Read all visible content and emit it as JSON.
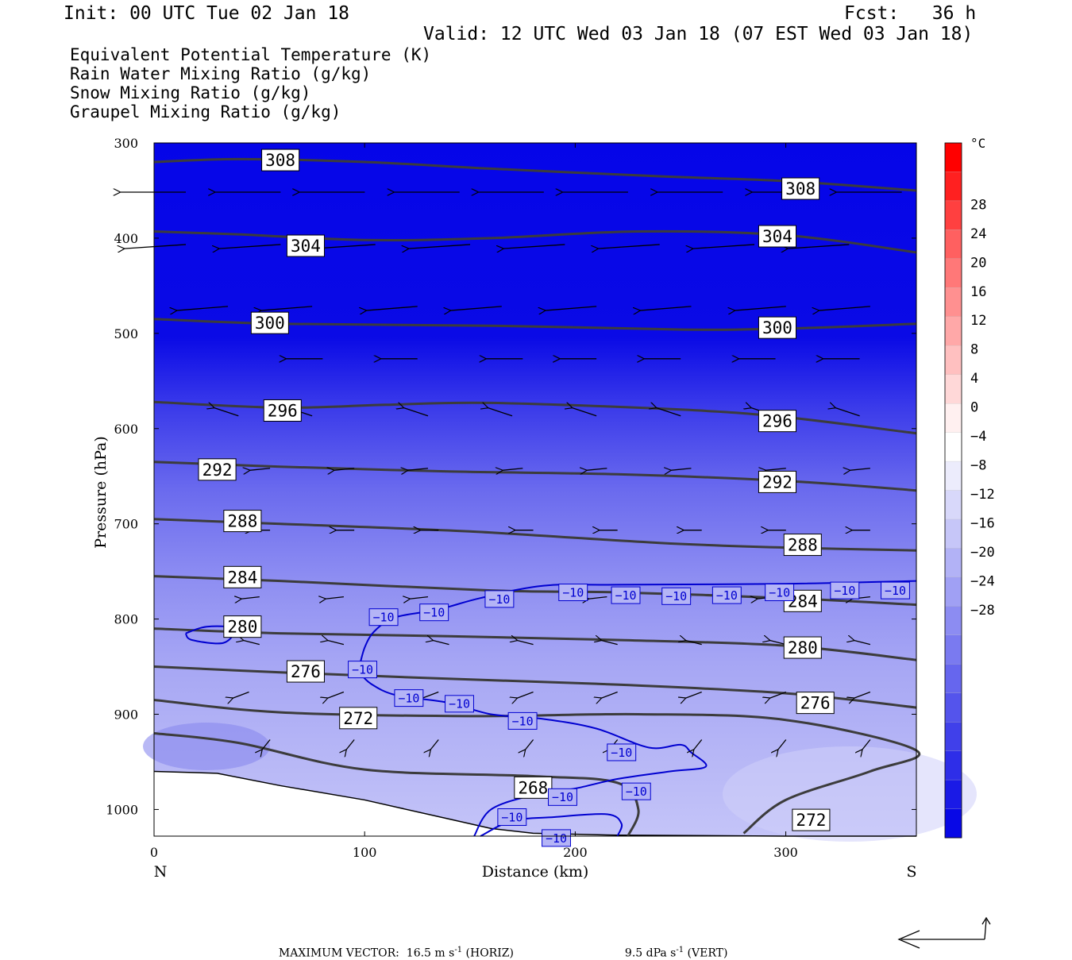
{
  "header": {
    "init": "Init: 00 UTC Tue 02 Jan 18",
    "fcst": "Fcst:   36 h",
    "valid": "Valid: 12 UTC Wed 03 Jan 18 (07 EST Wed 03 Jan 18)"
  },
  "fields": [
    {
      "label": "Equivalent Potential Temperature (K)",
      "color": "#555555"
    },
    {
      "label": "Rain Water Mixing Ratio (g/kg)",
      "color": "#007000"
    },
    {
      "label": "Snow Mixing Ratio (g/kg)",
      "color": "#f0905a"
    },
    {
      "label": "Graupel Mixing Ratio (g/kg)",
      "color": "#ee82ee"
    }
  ],
  "chart_data": {
    "type": "contour",
    "xlabel": "Distance (km)",
    "ylabel": "Pressure (hPa)",
    "xlim": [
      0,
      362
    ],
    "ylim": [
      300,
      1028
    ],
    "x_ticks": [
      0,
      100,
      200,
      300
    ],
    "y_ticks": [
      300,
      400,
      500,
      600,
      700,
      800,
      900,
      1000
    ],
    "x_end_labels": {
      "left": "N",
      "right": "S"
    },
    "colorbar": {
      "unit": "°C",
      "tick_labels": [
        "28",
        "24",
        "20",
        "16",
        "12",
        "8",
        "4",
        "0",
        "−4",
        "−8",
        "−12",
        "−16",
        "−20",
        "−24",
        "−28"
      ],
      "colors": [
        "#ff0000",
        "#ff2020",
        "#ff4040",
        "#ff6060",
        "#ff7878",
        "#ff9090",
        "#ffa8a8",
        "#ffc0c0",
        "#ffd8d8",
        "#fff0f0",
        "#ffffff",
        "#ececfc",
        "#d8d8fa",
        "#c6c6f8",
        "#b2b2f6",
        "#a0a0f4",
        "#8c8cf2",
        "#7a7af0",
        "#6666ee",
        "#5454ec",
        "#4040ea",
        "#2e2ee8",
        "#1a1ae6",
        "#0808e6"
      ]
    },
    "theta_e_contours": [
      {
        "label": "308",
        "points": [
          [
            0,
            320
          ],
          [
            40,
            317
          ],
          [
            100,
            320
          ],
          [
            160,
            327
          ],
          [
            240,
            335
          ],
          [
            300,
            340
          ],
          [
            362,
            350
          ]
        ],
        "label_positions": [
          [
            60,
            318
          ],
          [
            307,
            348
          ]
        ]
      },
      {
        "label": "304",
        "points": [
          [
            0,
            393
          ],
          [
            40,
            396
          ],
          [
            100,
            402
          ],
          [
            160,
            400
          ],
          [
            230,
            393
          ],
          [
            300,
            397
          ],
          [
            362,
            415
          ]
        ],
        "label_positions": [
          [
            72,
            408
          ],
          [
            296,
            398
          ]
        ]
      },
      {
        "label": "300",
        "points": [
          [
            0,
            485
          ],
          [
            60,
            490
          ],
          [
            160,
            492
          ],
          [
            250,
            496
          ],
          [
            300,
            495
          ],
          [
            362,
            490
          ]
        ],
        "label_positions": [
          [
            55,
            489
          ],
          [
            296,
            494
          ]
        ]
      },
      {
        "label": "296",
        "points": [
          [
            0,
            572
          ],
          [
            60,
            578
          ],
          [
            110,
            575
          ],
          [
            160,
            573
          ],
          [
            250,
            580
          ],
          [
            300,
            588
          ],
          [
            362,
            605
          ]
        ],
        "label_positions": [
          [
            61,
            581
          ],
          [
            296,
            592
          ]
        ]
      },
      {
        "label": "292",
        "points": [
          [
            0,
            635
          ],
          [
            60,
            640
          ],
          [
            140,
            645
          ],
          [
            220,
            648
          ],
          [
            300,
            655
          ],
          [
            362,
            665
          ]
        ],
        "label_positions": [
          [
            30,
            643
          ],
          [
            296,
            656
          ]
        ]
      },
      {
        "label": "288",
        "points": [
          [
            0,
            695
          ],
          [
            60,
            700
          ],
          [
            150,
            708
          ],
          [
            240,
            720
          ],
          [
            300,
            725
          ],
          [
            362,
            728
          ]
        ],
        "label_positions": [
          [
            42,
            697
          ],
          [
            308,
            722
          ]
        ]
      },
      {
        "label": "284",
        "points": [
          [
            0,
            755
          ],
          [
            60,
            760
          ],
          [
            160,
            770
          ],
          [
            220,
            772
          ],
          [
            300,
            778
          ],
          [
            362,
            785
          ]
        ],
        "label_positions": [
          [
            42,
            756
          ],
          [
            308,
            781
          ]
        ]
      },
      {
        "label": "280",
        "points": [
          [
            0,
            810
          ],
          [
            60,
            815
          ],
          [
            140,
            818
          ],
          [
            220,
            822
          ],
          [
            300,
            828
          ],
          [
            362,
            843
          ]
        ],
        "label_positions": [
          [
            42,
            808
          ],
          [
            308,
            830
          ]
        ]
      },
      {
        "label": "276",
        "points": [
          [
            0,
            850
          ],
          [
            60,
            856
          ],
          [
            130,
            862
          ],
          [
            210,
            868
          ],
          [
            300,
            878
          ],
          [
            362,
            893
          ]
        ],
        "label_positions": [
          [
            72,
            855
          ],
          [
            314,
            888
          ]
        ]
      },
      {
        "label": "272",
        "points": [
          [
            0,
            885
          ],
          [
            60,
            898
          ],
          [
            150,
            902
          ],
          [
            230,
            900
          ],
          [
            300,
            906
          ],
          [
            362,
            938
          ],
          [
            340,
            960
          ],
          [
            300,
            990
          ],
          [
            280,
            1025
          ]
        ],
        "label_positions": [
          [
            97,
            904
          ],
          [
            312,
            1011
          ]
        ]
      },
      {
        "label": "268",
        "points": [
          [
            0,
            920
          ],
          [
            40,
            930
          ],
          [
            100,
            958
          ],
          [
            180,
            965
          ],
          [
            220,
            972
          ],
          [
            230,
            1000
          ],
          [
            225,
            1028
          ]
        ],
        "label_positions": [
          [
            180,
            977
          ]
        ]
      }
    ],
    "temperature_contours": [
      {
        "label": "−10",
        "points": [
          [
            97,
            855
          ],
          [
            100,
            830
          ],
          [
            105,
            812
          ],
          [
            115,
            798
          ],
          [
            135,
            790
          ],
          [
            155,
            778
          ],
          [
            185,
            765
          ],
          [
            220,
            764
          ],
          [
            300,
            763
          ],
          [
            362,
            760
          ]
        ],
        "label_positions": [
          [
            109,
            798
          ],
          [
            133,
            793
          ],
          [
            164,
            779
          ],
          [
            199,
            772
          ],
          [
            224,
            775
          ],
          [
            248,
            776
          ],
          [
            272,
            775
          ],
          [
            297,
            772
          ],
          [
            328,
            770
          ],
          [
            352,
            770
          ]
        ]
      },
      {
        "label": "−10",
        "points": [
          [
            97,
            855
          ],
          [
            103,
            868
          ],
          [
            115,
            880
          ],
          [
            140,
            888
          ],
          [
            160,
            900
          ],
          [
            185,
            905
          ],
          [
            210,
            915
          ],
          [
            235,
            935
          ],
          [
            250,
            932
          ],
          [
            255,
            940
          ],
          [
            262,
            955
          ],
          [
            245,
            960
          ],
          [
            220,
            968
          ],
          [
            200,
            978
          ],
          [
            180,
            985
          ],
          [
            160,
            1000
          ],
          [
            152,
            1028
          ]
        ],
        "label_positions": [
          [
            99,
            853
          ],
          [
            121,
            883
          ],
          [
            145,
            889
          ],
          [
            175,
            907
          ],
          [
            222,
            940
          ],
          [
            229,
            981
          ],
          [
            194,
            987
          ],
          [
            170,
            1008
          ]
        ]
      },
      {
        "label": "−10",
        "points": [
          [
            155,
            1028
          ],
          [
            170,
            1012
          ],
          [
            190,
            1008
          ],
          [
            215,
            1005
          ],
          [
            222,
            1015
          ],
          [
            220,
            1028
          ]
        ],
        "label_positions": [
          [
            191,
            1030
          ]
        ]
      },
      {
        "label": "",
        "points": [
          [
            15,
            815
          ],
          [
            25,
            808
          ],
          [
            38,
            810
          ],
          [
            33,
            825
          ],
          [
            18,
            822
          ],
          [
            15,
            815
          ]
        ]
      }
    ],
    "vectors": [
      {
        "row": 335,
        "xs": [
          0,
          45,
          85,
          130,
          170,
          210,
          255,
          300,
          340
        ],
        "dx": -32,
        "dy": 0
      },
      {
        "row": 390,
        "xs": [
          0,
          45,
          90,
          135,
          180,
          225,
          270,
          315
        ],
        "dx": -30,
        "dy": 2
      },
      {
        "row": 455,
        "xs": [
          20,
          60,
          110,
          150,
          195,
          240,
          285,
          325
        ],
        "dx": -25,
        "dy": 2
      },
      {
        "row": 510,
        "xs": [
          65,
          110,
          160,
          195,
          235,
          280,
          320
        ],
        "dx": -18,
        "dy": 0
      },
      {
        "row": 570,
        "xs": [
          25,
          60,
          115,
          155,
          195,
          235,
          280,
          320
        ],
        "dx": -12,
        "dy": -4
      },
      {
        "row": 625,
        "xs": [
          40,
          80,
          115,
          160,
          200,
          240,
          285,
          325
        ],
        "dx": -10,
        "dy": 1
      },
      {
        "row": 690,
        "xs": [
          40,
          80,
          120,
          165,
          205,
          245,
          285,
          325
        ],
        "dx": -9,
        "dy": 0
      },
      {
        "row": 760,
        "xs": [
          35,
          75,
          115,
          155,
          200,
          240,
          280,
          325
        ],
        "dx": -9,
        "dy": 1
      },
      {
        "row": 810,
        "xs": [
          35,
          75,
          125,
          165,
          205,
          245,
          285,
          325
        ],
        "dx": -8,
        "dy": -2
      },
      {
        "row": 860,
        "xs": [
          30,
          75,
          120,
          165,
          205,
          245,
          285,
          325
        ],
        "dx": -8,
        "dy": 3
      },
      {
        "row": 910,
        "xs": [
          40,
          80,
          120,
          165,
          205,
          245,
          285,
          325
        ],
        "dx": -4,
        "dy": 5
      }
    ],
    "terrain": [
      [
        0,
        960
      ],
      [
        30,
        962
      ],
      [
        60,
        975
      ],
      [
        100,
        990
      ],
      [
        140,
        1010
      ],
      [
        160,
        1020
      ],
      [
        180,
        1025
      ],
      [
        220,
        1027
      ],
      [
        300,
        1028
      ],
      [
        362,
        1028
      ]
    ]
  },
  "footer": {
    "max_vector": "MAXIMUM VECTOR:  16.5 m s",
    "horiz_unit": "-1",
    "horiz": " (HORIZ)",
    "vert_value": "9.5 dPa s",
    "vert_unit": "-1",
    "vert": " (VERT)"
  }
}
